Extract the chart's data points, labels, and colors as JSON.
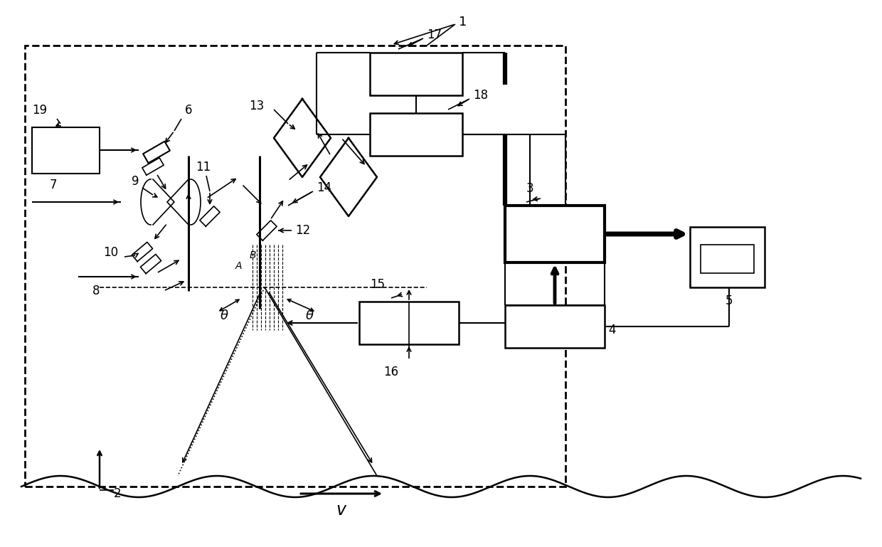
{
  "bg_color": "#ffffff",
  "line_color": "#000000",
  "figsize": [
    12.4,
    7.69
  ],
  "dpi": 100
}
